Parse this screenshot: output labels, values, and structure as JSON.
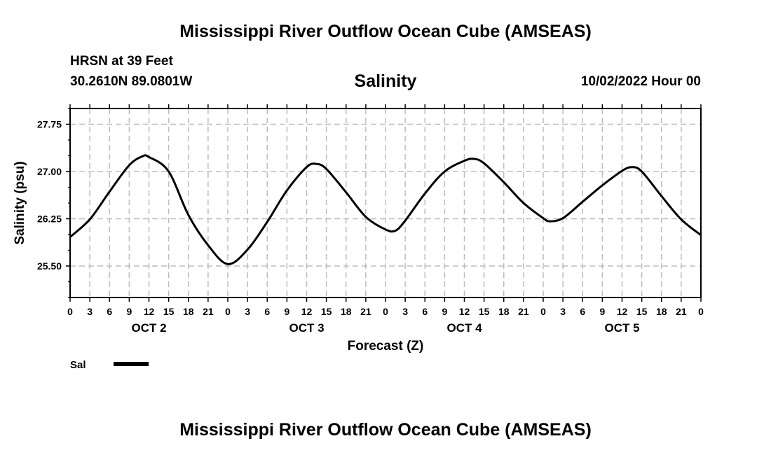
{
  "title": "Mississippi River Outflow Ocean Cube (AMSEAS)",
  "footer_title": "Mississippi River Outflow Ocean Cube (AMSEAS)",
  "station": "HRSN at 39 Feet",
  "coordinates": "30.2610N  89.0801W",
  "subtitle": "Salinity",
  "datetime": "10/02/2022 Hour 00",
  "colors": {
    "line": "#000000",
    "grid": "#bdbdbd"
  },
  "chart_data": {
    "type": "line",
    "title": "Salinity",
    "xlabel": "Forecast (Z)",
    "ylabel": "Salinity (psu)",
    "xlim": [
      0,
      96
    ],
    "ylim": [
      25.0,
      28.0
    ],
    "grid": true,
    "y_ticks": [
      25.5,
      26.25,
      27.0,
      27.75
    ],
    "y_tick_labels": [
      "25.50",
      "26.25",
      "27.00",
      "27.75"
    ],
    "x_ticks": [
      0,
      3,
      6,
      9,
      12,
      15,
      18,
      21,
      24,
      27,
      30,
      33,
      36,
      39,
      42,
      45,
      48,
      51,
      54,
      57,
      60,
      63,
      66,
      69,
      72,
      75,
      78,
      81,
      84,
      87,
      90,
      93,
      96
    ],
    "x_tick_labels": [
      "0",
      "3",
      "6",
      "9",
      "12",
      "15",
      "18",
      "21",
      "0",
      "3",
      "6",
      "9",
      "12",
      "15",
      "18",
      "21",
      "0",
      "3",
      "6",
      "9",
      "12",
      "15",
      "18",
      "21",
      "0",
      "3",
      "6",
      "9",
      "12",
      "15",
      "18",
      "21",
      "0"
    ],
    "day_labels": [
      {
        "label": "OCT 2",
        "hour": 12
      },
      {
        "label": "OCT 3",
        "hour": 36
      },
      {
        "label": "OCT 4",
        "hour": 60
      },
      {
        "label": "OCT 5",
        "hour": 84
      }
    ],
    "legend": {
      "position": "bottom-left",
      "entries": [
        "Sal"
      ]
    },
    "series": [
      {
        "name": "Sal",
        "x": [
          0,
          3,
          6,
          9,
          11,
          12,
          15,
          18,
          21,
          24,
          27,
          30,
          33,
          36,
          37.5,
          39,
          42,
          45,
          48,
          49.5,
          51,
          54,
          57,
          60,
          61.5,
          63,
          66,
          69,
          72,
          73,
          75,
          78,
          81,
          84,
          85.5,
          87,
          90,
          93,
          96
        ],
        "y": [
          25.96,
          26.24,
          26.68,
          27.1,
          27.24,
          27.23,
          27.0,
          26.31,
          25.83,
          25.53,
          25.76,
          26.2,
          26.7,
          27.07,
          27.12,
          27.04,
          26.67,
          26.28,
          26.08,
          26.06,
          26.22,
          26.65,
          27.0,
          27.17,
          27.2,
          27.13,
          26.83,
          26.5,
          26.26,
          26.21,
          26.26,
          26.52,
          26.78,
          27.01,
          27.07,
          27.0,
          26.61,
          26.24,
          25.99
        ]
      }
    ]
  }
}
